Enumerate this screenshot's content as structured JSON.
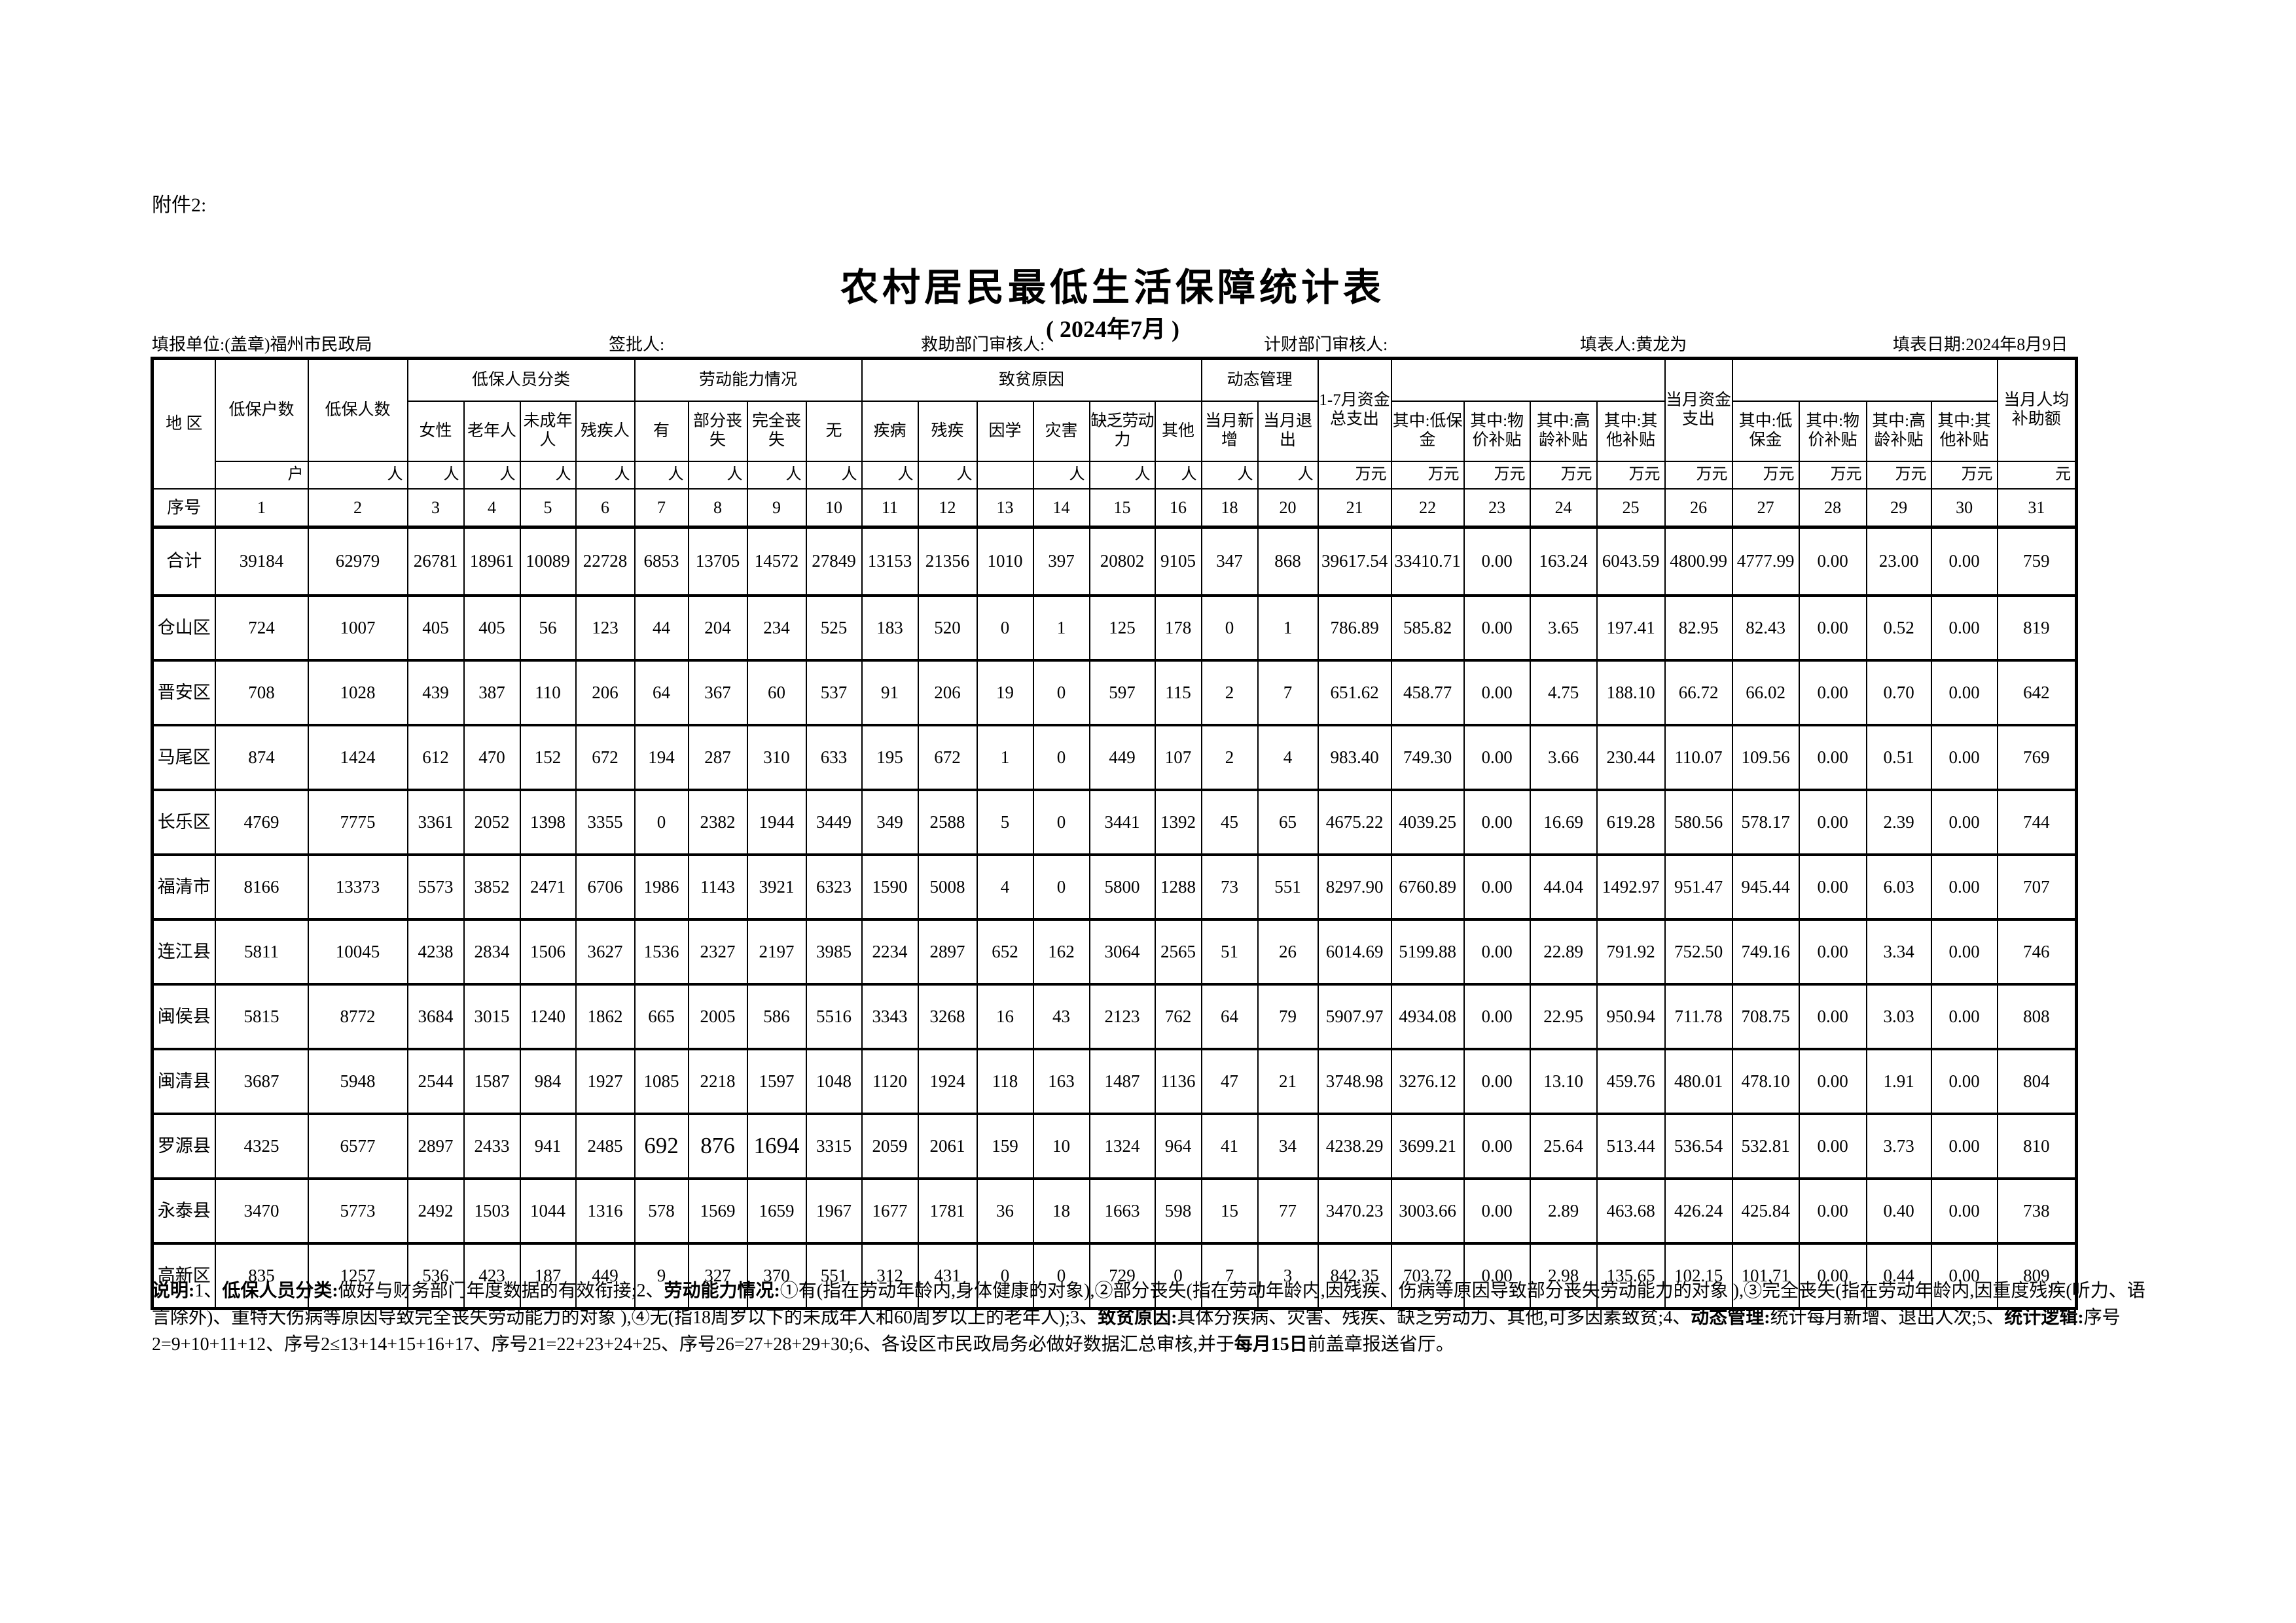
{
  "attachment_label": "附件2:",
  "title": "农村居民最低生活保障统计表",
  "subtitle": "( 2024年7月 )",
  "info_bar": {
    "report_unit": "填报单位:(盖章)福州市民政局",
    "approver": "签批人:",
    "aid_dept_reviewer": "救助部门审核人:",
    "finance_dept_reviewer": "计财部门审核人:",
    "preparer": "填表人:黄龙为",
    "report_date": "填表日期:2024年8月9日"
  },
  "table": {
    "headers": {
      "region": "地 区",
      "households": "低保户数",
      "persons": "低保人数",
      "classification_group": "低保人员分类",
      "classification": [
        "女性",
        "老年人",
        "未成年人",
        "残疾人"
      ],
      "ability_group": "劳动能力情况",
      "ability": [
        "有",
        "部分丧失",
        "完全丧失",
        "无"
      ],
      "cause_group": "致贫原因",
      "causes": [
        "疾病",
        "残疾",
        "因学",
        "灾害",
        "缺乏劳动力",
        "其他"
      ],
      "dynamic_group": "动态管理",
      "dynamic": [
        "当月新增",
        "当月退出"
      ],
      "ytd_total": "1-7月资金总支出",
      "ytd_sub": [
        "其中:低保金",
        "其中:物价补贴",
        "其中:高龄补贴",
        "其中:其他补贴"
      ],
      "month_total": "当月资金支出",
      "month_sub": [
        "其中:低保金",
        "其中:物价补贴",
        "其中:高龄补贴",
        "其中:其他补贴"
      ],
      "per_capita": "当月人均补助额"
    },
    "unit_row": [
      "户",
      "人",
      "人",
      "人",
      "人",
      "人",
      "人",
      "人",
      "人",
      "人",
      "人",
      "人",
      "",
      "人",
      "人",
      "人",
      "人",
      "人",
      "万元",
      "万元",
      "万元",
      "万元",
      "万元",
      "万元",
      "万元",
      "万元",
      "万元",
      "万元",
      "元"
    ],
    "seq_label": "序号",
    "seq_numbers": [
      "1",
      "2",
      "3",
      "4",
      "5",
      "6",
      "7",
      "8",
      "9",
      "10",
      "11",
      "12",
      "13",
      "14",
      "15",
      "16",
      "18",
      "20",
      "21",
      "22",
      "23",
      "24",
      "25",
      "26",
      "27",
      "28",
      "29",
      "30",
      "31"
    ],
    "rows": [
      {
        "name": "合计",
        "values": [
          "39184",
          "62979",
          "26781",
          "18961",
          "10089",
          "22728",
          "6853",
          "13705",
          "14572",
          "27849",
          "13153",
          "21356",
          "1010",
          "397",
          "20802",
          "9105",
          "347",
          "868",
          "39617.54",
          "33410.71",
          "0.00",
          "163.24",
          "6043.59",
          "4800.99",
          "4777.99",
          "0.00",
          "23.00",
          "0.00",
          "759"
        ]
      },
      {
        "name": "仓山区",
        "values": [
          "724",
          "1007",
          "405",
          "405",
          "56",
          "123",
          "44",
          "204",
          "234",
          "525",
          "183",
          "520",
          "0",
          "1",
          "125",
          "178",
          "0",
          "1",
          "786.89",
          "585.82",
          "0.00",
          "3.65",
          "197.41",
          "82.95",
          "82.43",
          "0.00",
          "0.52",
          "0.00",
          "819"
        ]
      },
      {
        "name": "晋安区",
        "values": [
          "708",
          "1028",
          "439",
          "387",
          "110",
          "206",
          "64",
          "367",
          "60",
          "537",
          "91",
          "206",
          "19",
          "0",
          "597",
          "115",
          "2",
          "7",
          "651.62",
          "458.77",
          "0.00",
          "4.75",
          "188.10",
          "66.72",
          "66.02",
          "0.00",
          "0.70",
          "0.00",
          "642"
        ]
      },
      {
        "name": "马尾区",
        "values": [
          "874",
          "1424",
          "612",
          "470",
          "152",
          "672",
          "194",
          "287",
          "310",
          "633",
          "195",
          "672",
          "1",
          "0",
          "449",
          "107",
          "2",
          "4",
          "983.40",
          "749.30",
          "0.00",
          "3.66",
          "230.44",
          "110.07",
          "109.56",
          "0.00",
          "0.51",
          "0.00",
          "769"
        ]
      },
      {
        "name": "长乐区",
        "values": [
          "4769",
          "7775",
          "3361",
          "2052",
          "1398",
          "3355",
          "0",
          "2382",
          "1944",
          "3449",
          "349",
          "2588",
          "5",
          "0",
          "3441",
          "1392",
          "45",
          "65",
          "4675.22",
          "4039.25",
          "0.00",
          "16.69",
          "619.28",
          "580.56",
          "578.17",
          "0.00",
          "2.39",
          "0.00",
          "744"
        ]
      },
      {
        "name": "福清市",
        "values": [
          "8166",
          "13373",
          "5573",
          "3852",
          "2471",
          "6706",
          "1986",
          "1143",
          "3921",
          "6323",
          "1590",
          "5008",
          "4",
          "0",
          "5800",
          "1288",
          "73",
          "551",
          "8297.90",
          "6760.89",
          "0.00",
          "44.04",
          "1492.97",
          "951.47",
          "945.44",
          "0.00",
          "6.03",
          "0.00",
          "707"
        ]
      },
      {
        "name": "连江县",
        "values": [
          "5811",
          "10045",
          "4238",
          "2834",
          "1506",
          "3627",
          "1536",
          "2327",
          "2197",
          "3985",
          "2234",
          "2897",
          "652",
          "162",
          "3064",
          "2565",
          "51",
          "26",
          "6014.69",
          "5199.88",
          "0.00",
          "22.89",
          "791.92",
          "752.50",
          "749.16",
          "0.00",
          "3.34",
          "0.00",
          "746"
        ]
      },
      {
        "name": "闽侯县",
        "values": [
          "5815",
          "8772",
          "3684",
          "3015",
          "1240",
          "1862",
          "665",
          "2005",
          "586",
          "5516",
          "3343",
          "3268",
          "16",
          "43",
          "2123",
          "762",
          "64",
          "79",
          "5907.97",
          "4934.08",
          "0.00",
          "22.95",
          "950.94",
          "711.78",
          "708.75",
          "0.00",
          "3.03",
          "0.00",
          "808"
        ]
      },
      {
        "name": "闽清县",
        "values": [
          "3687",
          "5948",
          "2544",
          "1587",
          "984",
          "1927",
          "1085",
          "2218",
          "1597",
          "1048",
          "1120",
          "1924",
          "118",
          "163",
          "1487",
          "1136",
          "47",
          "21",
          "3748.98",
          "3276.12",
          "0.00",
          "13.10",
          "459.76",
          "480.01",
          "478.10",
          "0.00",
          "1.91",
          "0.00",
          "804"
        ]
      },
      {
        "name": "罗源县",
        "values": [
          "4325",
          "6577",
          "2897",
          "2433",
          "941",
          "2485",
          "692",
          "876",
          "1694",
          "3315",
          "2059",
          "2061",
          "159",
          "10",
          "1324",
          "964",
          "41",
          "34",
          "4238.29",
          "3699.21",
          "0.00",
          "25.64",
          "513.44",
          "536.54",
          "532.81",
          "0.00",
          "3.73",
          "0.00",
          "810"
        ]
      },
      {
        "name": "永泰县",
        "values": [
          "3470",
          "5773",
          "2492",
          "1503",
          "1044",
          "1316",
          "578",
          "1569",
          "1659",
          "1967",
          "1677",
          "1781",
          "36",
          "18",
          "1663",
          "598",
          "15",
          "77",
          "3470.23",
          "3003.66",
          "0.00",
          "2.89",
          "463.68",
          "426.24",
          "425.84",
          "0.00",
          "0.40",
          "0.00",
          "738"
        ]
      },
      {
        "name": "高新区",
        "values": [
          "835",
          "1257",
          "536",
          "423",
          "187",
          "449",
          "9",
          "327",
          "370",
          "551",
          "312",
          "431",
          "0",
          "0",
          "729",
          "0",
          "7",
          "3",
          "842.35",
          "703.72",
          "0.00",
          "2.98",
          "135.65",
          "102.15",
          "101.71",
          "0.00",
          "0.44",
          "0.00",
          "809"
        ]
      }
    ]
  },
  "emphasized_cells": {
    "row_name": "罗源县",
    "value_indexes": [
      6,
      7,
      8
    ]
  },
  "notes": [
    {
      "text": "说明:",
      "bold": true
    },
    {
      "text": "1、",
      "bold": false
    },
    {
      "text": "低保人员分类:",
      "bold": true
    },
    {
      "text": "做好与财务部门年度数据的有效衔接;2、",
      "bold": false
    },
    {
      "text": "劳动能力情况:",
      "bold": true
    },
    {
      "text": "①有(指在劳动年龄内,身体健康的对象),②部分丧失(指在劳动年龄内,因残疾、伤病等原因导致部分丧失劳动能力的对象 ),③完全丧失(指在劳动年龄内,因重度残疾(听力、语言除外)、重特大伤病等原因导致完全丧失劳动能力的对象 ),④无(指18周岁以下的未成年人和60周岁以上的老年人);3、",
      "bold": false
    },
    {
      "text": "致贫原因:",
      "bold": true
    },
    {
      "text": "具体分疾病、灾害、残疾、缺乏劳动力、其他,可多因素致贫;4、",
      "bold": false
    },
    {
      "text": "动态管理:",
      "bold": true
    },
    {
      "text": "统计每月新增、退出人次;5、",
      "bold": false
    },
    {
      "text": "统计逻辑:",
      "bold": true
    },
    {
      "text": "序号2=9+10+11+12、序号2≤13+14+15+16+17、序号21=22+23+24+25、序号26=27+28+29+30;6、各设区市民政局务必做好数据汇总审核,并于",
      "bold": false
    },
    {
      "text": "每月15日",
      "bold": true
    },
    {
      "text": "前盖章报送省厅。",
      "bold": false
    }
  ]
}
